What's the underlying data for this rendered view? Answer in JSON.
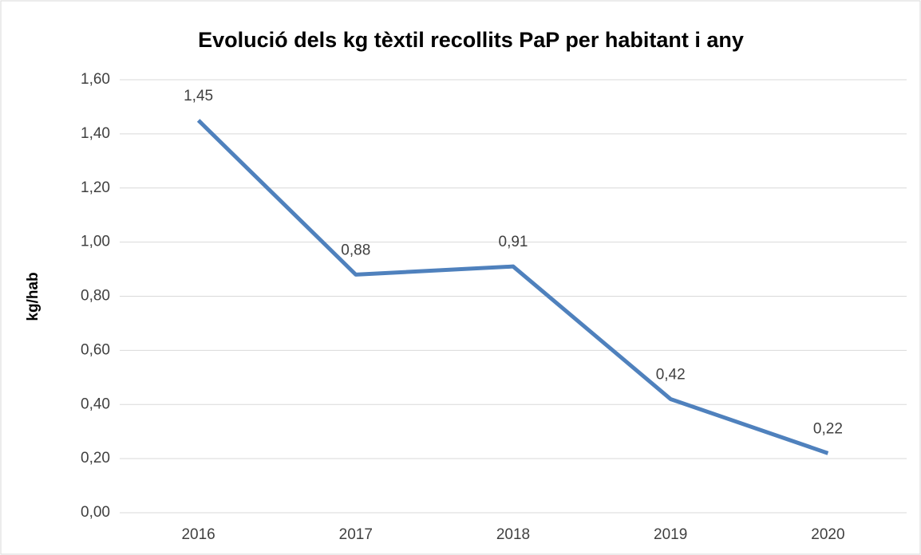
{
  "chart_data": {
    "type": "line",
    "title": "Evolució dels kg tèxtil recollits PaP per habitant i any",
    "y_label": "kg/hab",
    "categories": [
      "2016",
      "2017",
      "2018",
      "2019",
      "2020"
    ],
    "series": [
      {
        "name": "kg/hab",
        "color": "#4f81bd",
        "values": [
          1.45,
          0.88,
          0.91,
          0.42,
          0.22
        ],
        "value_labels": [
          "1,45",
          "0,88",
          "0,91",
          "0,42",
          "0,22"
        ]
      }
    ],
    "ylim": [
      0,
      1.6
    ],
    "yticks": [
      {
        "value": 0,
        "label": "0,00"
      },
      {
        "value": 0.2,
        "label": "0,20"
      },
      {
        "value": 0.4,
        "label": "0,40"
      },
      {
        "value": 0.6,
        "label": "0,60"
      },
      {
        "value": 0.8,
        "label": "0,80"
      },
      {
        "value": 1.0,
        "label": "1,00"
      },
      {
        "value": 1.2,
        "label": "1,20"
      },
      {
        "value": 1.4,
        "label": "1,40"
      },
      {
        "value": 1.6,
        "label": "1,60"
      }
    ],
    "grid": true
  }
}
